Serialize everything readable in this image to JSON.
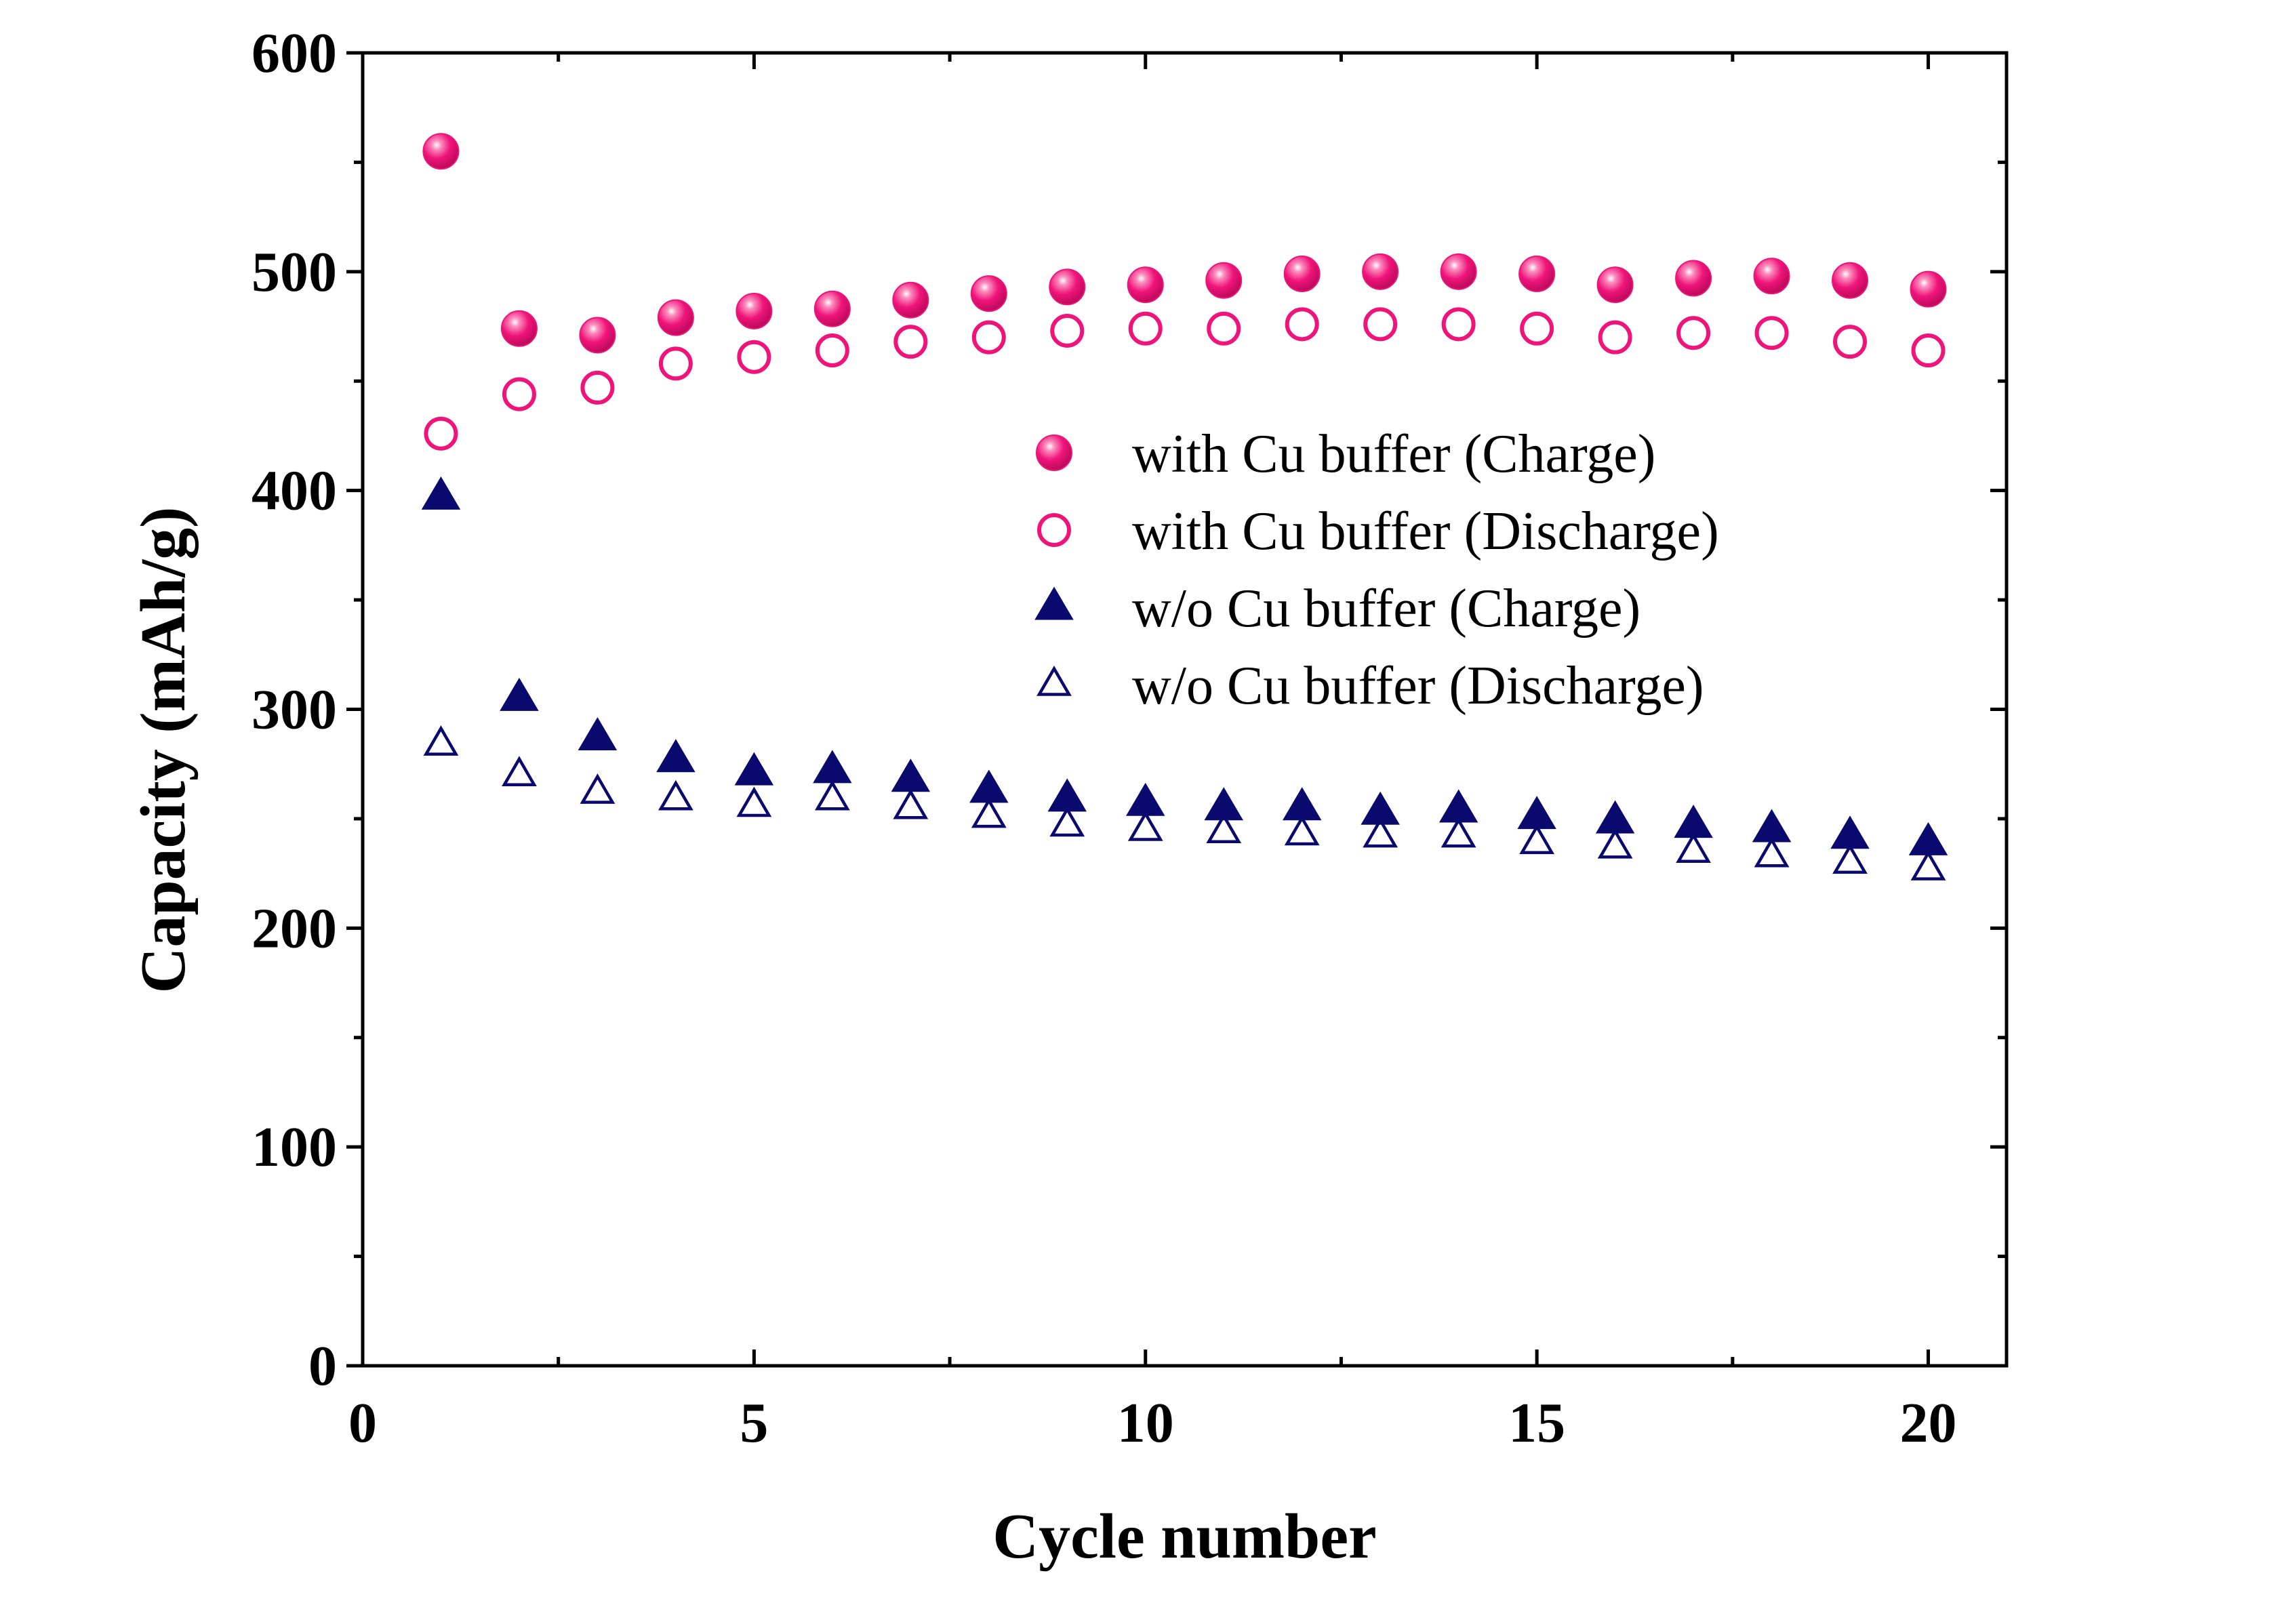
{
  "chart_data": {
    "type": "scatter",
    "title": "",
    "xlabel": "Cycle number",
    "ylabel": "Capacity (mAh/g)",
    "xlim": [
      0,
      21
    ],
    "ylim": [
      0,
      600
    ],
    "xticks": [
      0,
      5,
      10,
      15,
      20
    ],
    "xtick_labels": [
      "0",
      "5",
      "10",
      "15",
      "20"
    ],
    "yticks": [
      0,
      100,
      200,
      300,
      400,
      500,
      600
    ],
    "ytick_labels": [
      "0",
      "100",
      "200",
      "300",
      "400",
      "500",
      "600"
    ],
    "grid": false,
    "legend_position": "right-center",
    "x": [
      1,
      2,
      3,
      4,
      5,
      6,
      7,
      8,
      9,
      10,
      11,
      12,
      13,
      14,
      15,
      16,
      17,
      18,
      19,
      20
    ],
    "series": [
      {
        "name": "with Cu buffer (Charge)",
        "marker": "filled-circle",
        "color": "#f0147a",
        "values": [
          555,
          474,
          471,
          479,
          482,
          483,
          487,
          490,
          493,
          494,
          496,
          499,
          500,
          500,
          499,
          494,
          497,
          498,
          496,
          492
        ]
      },
      {
        "name": "with Cu buffer (Discharge)",
        "marker": "open-circle",
        "color": "#f0147a",
        "values": [
          426,
          444,
          447,
          458,
          461,
          464,
          468,
          470,
          473,
          474,
          474,
          476,
          476,
          476,
          474,
          470,
          472,
          472,
          468,
          464
        ]
      },
      {
        "name": "w/o Cu buffer (Charge)",
        "marker": "filled-triangle",
        "color": "#0a0a6e",
        "values": [
          397,
          305,
          287,
          277,
          271,
          272,
          268,
          263,
          259,
          257,
          255,
          255,
          253,
          254,
          251,
          249,
          247,
          245,
          242,
          239
        ]
      },
      {
        "name": "w/o Cu buffer (Discharge)",
        "marker": "open-triangle",
        "color": "#0a0a6e",
        "values": [
          284,
          270,
          262,
          259,
          256,
          259,
          255,
          251,
          247,
          245,
          244,
          243,
          242,
          242,
          239,
          237,
          235,
          233,
          230,
          227
        ]
      }
    ]
  }
}
